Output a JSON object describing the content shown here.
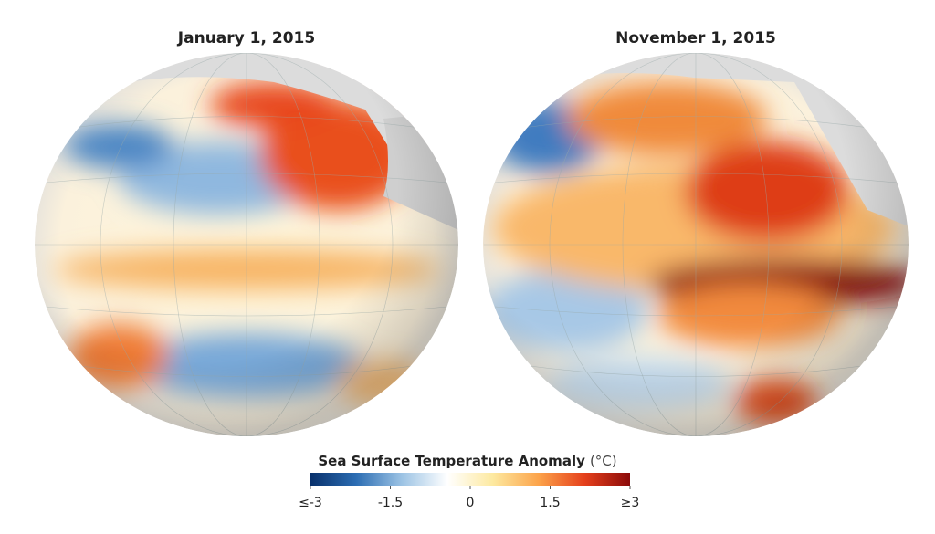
{
  "panels": [
    {
      "title": "January 1, 2015"
    },
    {
      "title": "November 1, 2015"
    }
  ],
  "colorbar": {
    "title": "Sea Surface Temperature Anomaly",
    "unit": "(°C)",
    "range": [
      -3,
      3
    ],
    "ticks": [
      {
        "value": -3,
        "label": "≤-3"
      },
      -1.5,
      0,
      1.5,
      {
        "value": 3,
        "label": "≥3"
      }
    ],
    "colors": [
      "#08306b",
      "#2c6db3",
      "#9cc3e4",
      "#ffffff",
      "#fde9a0",
      "#fca34a",
      "#e5401c",
      "#8b0a0a"
    ]
  }
}
